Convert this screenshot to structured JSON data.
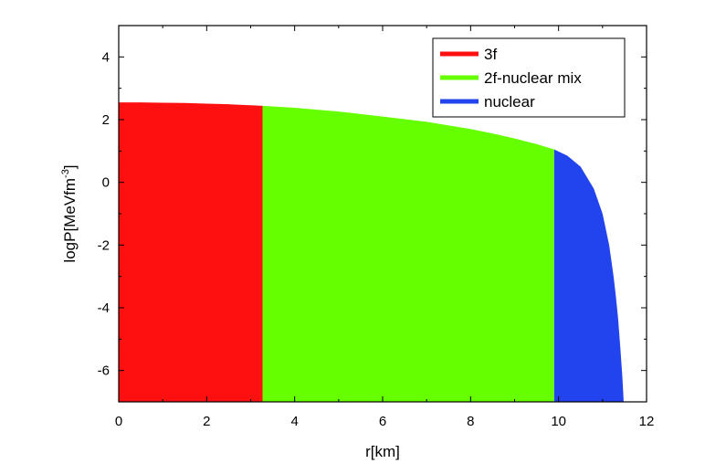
{
  "chart_data": {
    "type": "area",
    "xlabel": "r[km]",
    "ylabel": {
      "base": "logP[MeVfm",
      "sup": "-3",
      "close": "]"
    },
    "xlim": [
      0,
      12
    ],
    "ylim": [
      -7,
      5
    ],
    "xticks": [
      0,
      2,
      4,
      6,
      8,
      10,
      12
    ],
    "yticks": [
      -6,
      -4,
      -2,
      0,
      2,
      4
    ],
    "grid": false,
    "legend_position": "top-right",
    "baseline": -7,
    "series": [
      {
        "name": "3f",
        "color": "#ff1010",
        "x": [
          0,
          0.5,
          1.0,
          1.5,
          2.0,
          2.5,
          3.0,
          3.27
        ],
        "y": [
          2.55,
          2.55,
          2.54,
          2.53,
          2.51,
          2.49,
          2.46,
          2.44
        ]
      },
      {
        "name": "2f-nuclear mix",
        "color": "#66ff00",
        "x": [
          3.27,
          4.0,
          5.0,
          6.0,
          7.0,
          8.0,
          8.5,
          9.0,
          9.5,
          9.9
        ],
        "y": [
          2.44,
          2.38,
          2.26,
          2.1,
          1.93,
          1.7,
          1.56,
          1.4,
          1.22,
          1.05
        ]
      },
      {
        "name": "nuclear",
        "color": "#2244ee",
        "x": [
          9.9,
          10.2,
          10.5,
          10.8,
          11.0,
          11.15,
          11.25,
          11.3,
          11.35,
          11.4,
          11.45,
          11.48
        ],
        "y": [
          1.05,
          0.85,
          0.5,
          -0.2,
          -1.0,
          -2.0,
          -3.0,
          -3.6,
          -4.3,
          -5.2,
          -6.2,
          -7.0
        ]
      }
    ]
  }
}
